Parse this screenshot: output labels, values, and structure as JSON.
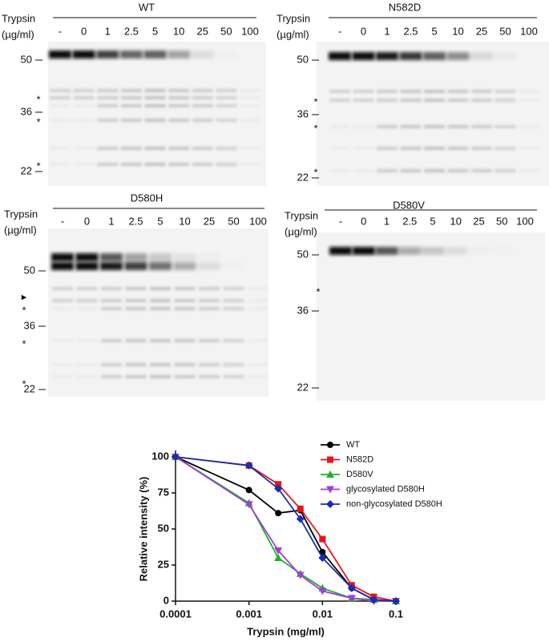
{
  "blots": [
    {
      "title": "WT",
      "axis_label": [
        "Trypsin",
        "(µg/ml)"
      ],
      "lanes": [
        "-",
        "0",
        "1",
        "2.5",
        "5",
        "10",
        "25",
        "50",
        "100"
      ],
      "markers": [
        "50",
        "36",
        "22"
      ],
      "annotations": [
        "*",
        "*",
        "*"
      ]
    },
    {
      "title": "N582D",
      "axis_label": [
        "Trypsin",
        "(µg/ml)"
      ],
      "lanes": [
        "-",
        "0",
        "1",
        "2.5",
        "5",
        "10",
        "25",
        "50",
        "100"
      ],
      "markers": [
        "50",
        "36",
        "22"
      ],
      "annotations": [
        "*",
        "*",
        "*"
      ]
    },
    {
      "title": "D580H",
      "axis_label": [
        "Trypsin",
        "(µg/ml)"
      ],
      "lanes": [
        "-",
        "0",
        "1",
        "2.5",
        "5",
        "10",
        "25",
        "50",
        "100"
      ],
      "markers": [
        "50",
        "36",
        "22"
      ],
      "annotations": [
        "▸",
        "*",
        "*",
        "*"
      ]
    },
    {
      "title": "D580V",
      "axis_label": [
        "Trypsin",
        "(µg/ml)"
      ],
      "lanes": [
        "-",
        "0",
        "1",
        "2.5",
        "5",
        "10",
        "25",
        "50",
        "100"
      ],
      "markers": [
        "50",
        "36",
        "22"
      ],
      "annotations": [
        "*"
      ]
    }
  ],
  "chart_data": {
    "type": "line",
    "x_label": "Trypsin (mg/ml)",
    "y_label": "Relative intensity (%)",
    "x": [
      0.0001,
      0.001,
      0.0025,
      0.005,
      0.01,
      0.025,
      0.05,
      0.1
    ],
    "log_x": true,
    "xlim": [
      0.0001,
      0.1
    ],
    "xticks": [
      0.0001,
      0.001,
      0.01,
      0.1
    ],
    "ylim": [
      0,
      100
    ],
    "yticks": [
      0,
      25,
      50,
      75,
      100
    ],
    "legend": "upper right",
    "series": [
      {
        "name": "WT",
        "color": "#000000",
        "marker": "circle",
        "values": [
          100,
          77,
          61,
          63,
          34,
          9,
          1,
          0
        ]
      },
      {
        "name": "N582D",
        "color": "#e8141c",
        "marker": "square",
        "values": [
          100,
          94,
          81,
          64,
          43,
          11,
          3,
          0
        ]
      },
      {
        "name": "D580V",
        "color": "#1fb12a",
        "marker": "triangle-up",
        "values": [
          100,
          68,
          30,
          19,
          9,
          2,
          1,
          0
        ]
      },
      {
        "name": "glycosylated D580H",
        "color": "#a23ed6",
        "marker": "triangle-down",
        "values": [
          100,
          67,
          35,
          18,
          7,
          2,
          0,
          0
        ]
      },
      {
        "name": "non-glycosylated D580H",
        "color": "#1a2cb0",
        "marker": "diamond",
        "values": [
          100,
          94,
          78,
          57,
          30,
          9,
          1,
          0
        ]
      }
    ]
  }
}
